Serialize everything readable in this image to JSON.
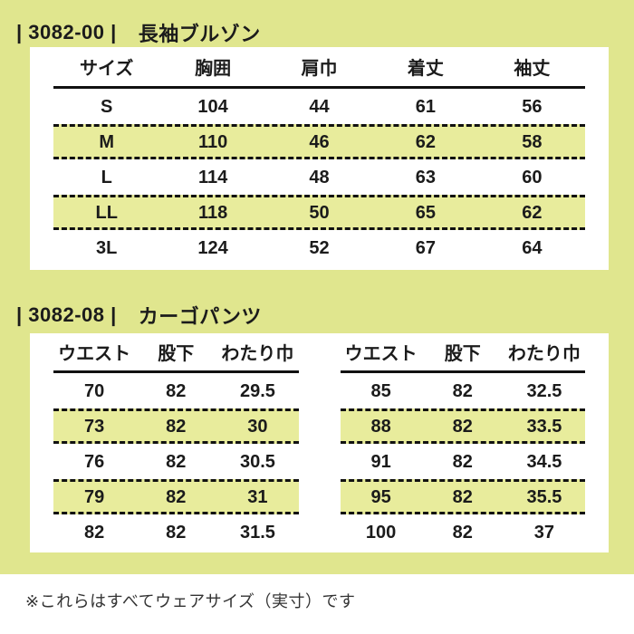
{
  "colors": {
    "background": "#e0e68e",
    "panel": "#ffffff",
    "highlight_row": "#e8ec9c",
    "text": "#1b1b1b"
  },
  "sections": [
    {
      "code_label": "| 3082-00 |",
      "name": "長袖ブルゾン",
      "table": {
        "headers": [
          "サイズ",
          "胸囲",
          "肩巾",
          "着丈",
          "袖丈"
        ],
        "rows": [
          {
            "highlight": false,
            "cells": [
              "S",
              "104",
              "44",
              "61",
              "56"
            ]
          },
          {
            "highlight": true,
            "cells": [
              "M",
              "110",
              "46",
              "62",
              "58"
            ]
          },
          {
            "highlight": false,
            "cells": [
              "L",
              "114",
              "48",
              "63",
              "60"
            ]
          },
          {
            "highlight": true,
            "cells": [
              "LL",
              "118",
              "50",
              "65",
              "62"
            ]
          },
          {
            "highlight": false,
            "cells": [
              "3L",
              "124",
              "52",
              "67",
              "64"
            ]
          }
        ]
      }
    },
    {
      "code_label": "| 3082-08 |",
      "name": "カーゴパンツ",
      "tables": [
        {
          "headers": [
            "ウエスト",
            "股下",
            "わたり巾"
          ],
          "rows": [
            {
              "highlight": false,
              "cells": [
                "70",
                "82",
                "29.5"
              ]
            },
            {
              "highlight": true,
              "cells": [
                "73",
                "82",
                "30"
              ]
            },
            {
              "highlight": false,
              "cells": [
                "76",
                "82",
                "30.5"
              ]
            },
            {
              "highlight": true,
              "cells": [
                "79",
                "82",
                "31"
              ]
            },
            {
              "highlight": false,
              "cells": [
                "82",
                "82",
                "31.5"
              ]
            }
          ]
        },
        {
          "headers": [
            "ウエスト",
            "股下",
            "わたり巾"
          ],
          "rows": [
            {
              "highlight": false,
              "cells": [
                "85",
                "82",
                "32.5"
              ]
            },
            {
              "highlight": true,
              "cells": [
                "88",
                "82",
                "33.5"
              ]
            },
            {
              "highlight": false,
              "cells": [
                "91",
                "82",
                "34.5"
              ]
            },
            {
              "highlight": true,
              "cells": [
                "95",
                "82",
                "35.5"
              ]
            },
            {
              "highlight": false,
              "cells": [
                "100",
                "82",
                "37"
              ]
            }
          ]
        }
      ]
    }
  ],
  "footnote": "※これらはすべてウェアサイズ（実寸）です"
}
